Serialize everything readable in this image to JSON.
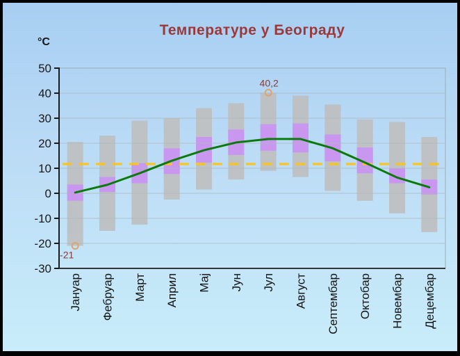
{
  "page": {
    "title": "Температуре у Београду",
    "y_axis_unit": "°C"
  },
  "chart_data": {
    "type": "bar",
    "subtype": "floating-range-bars-with-line",
    "title": "Температуре у Београду",
    "unit": "°C",
    "xlabel": "",
    "ylabel": "°C",
    "ylim": [
      -30,
      50
    ],
    "yticks": [
      50,
      40,
      30,
      20,
      10,
      0,
      -10,
      -20,
      -30
    ],
    "grid": true,
    "legend": false,
    "categories": [
      "Јануар",
      "Фебруар",
      "Март",
      "Април",
      "Мај",
      "Јун",
      "Јул",
      "Август",
      "Септембар",
      "Октобар",
      "Новембар",
      "Децембар"
    ],
    "series": [
      {
        "name": "record-range",
        "style": "floating-bar",
        "lows": [
          -21,
          -15,
          -12.5,
          -2.5,
          1.5,
          5.5,
          9,
          6.5,
          1,
          -3,
          -8,
          -15.5
        ],
        "highs": [
          20.5,
          23,
          29,
          30,
          34,
          36,
          40.2,
          39,
          35.5,
          29.5,
          28.5,
          22.5
        ]
      },
      {
        "name": "average-range",
        "style": "floating-bar",
        "lows": [
          -3,
          0.5,
          4,
          7.7,
          12.3,
          15.3,
          17,
          16.3,
          12.8,
          8,
          4,
          -0.5
        ],
        "highs": [
          3.5,
          6.5,
          12,
          18,
          22.5,
          25.5,
          27.6,
          27.9,
          23.5,
          18.3,
          10,
          5.5
        ]
      },
      {
        "name": "monthly-mean",
        "style": "line",
        "values": [
          0.3,
          3.4,
          8.0,
          13.0,
          17.2,
          20.3,
          21.7,
          21.7,
          18.0,
          12.3,
          6.3,
          2.4
        ]
      },
      {
        "name": "annual-mean",
        "style": "dashed-horizontal-line",
        "value": 11.7
      }
    ],
    "annotations": [
      {
        "category_index": 6,
        "value": 40.2,
        "label": "40,2",
        "placement": "above",
        "marker": "open-circle"
      },
      {
        "category_index": 0,
        "value": -21,
        "label": "-21",
        "placement": "below",
        "marker": "open-circle"
      }
    ],
    "colors": {
      "record_bar": "#BFBFBF",
      "average_bar": "#C995F2",
      "mean_line": "#0B7A0B",
      "annual_line": "#FFC416",
      "marker": "#E2A269",
      "annotation_text": "#8B3A3A",
      "title": "#9C3838",
      "grid": "#ADB8BE",
      "plot_border": "#9FADB5",
      "axis": "#1A1A1A",
      "background_top": "#A7CEF2",
      "background_mid": "#BCDCF6",
      "background_bottom": "#C9EDFA"
    }
  }
}
